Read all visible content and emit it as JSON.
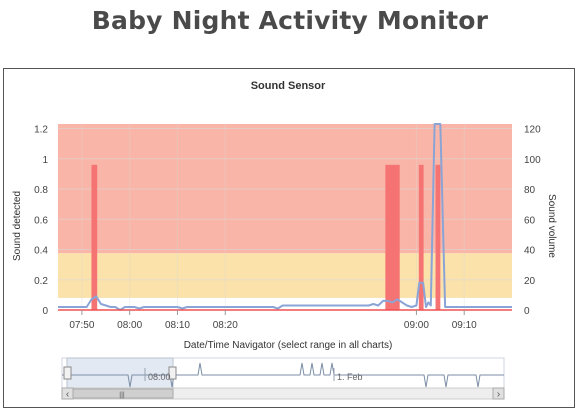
{
  "page": {
    "title": "Baby Night Activity Monitor"
  },
  "chart_data": {
    "type": "bar",
    "title": "Sound Sensor",
    "ylabel": "Sound detected",
    "ylabel_right": "Sound volume",
    "ylim": [
      0,
      1.23
    ],
    "ylim_right": [
      0,
      123
    ],
    "yticks": [
      "0",
      "0.2",
      "0.4",
      "0.6",
      "0.8",
      "1",
      "1.2"
    ],
    "yticks_right": [
      "0",
      "20",
      "40",
      "60",
      "80",
      "100",
      "120"
    ],
    "xlim": [
      "07:45",
      "09:20"
    ],
    "xticks": [
      "07:50",
      "08:00",
      "08:10",
      "08:20",
      "09:00",
      "09:10"
    ],
    "bands": [
      {
        "from": 0.375,
        "to": 1.23,
        "color": "#f9b6a8"
      },
      {
        "from": 0.08,
        "to": 0.375,
        "color": "#fbe2ab"
      }
    ],
    "series": [
      {
        "name": "Sound detected",
        "type": "column",
        "color": "#f57373",
        "points": [
          {
            "from": "07:52.0",
            "to": "07:53.2",
            "value": 0.96
          },
          {
            "from": "08:53.5",
            "to": "08:56.5",
            "value": 0.96
          },
          {
            "from": "09:00.5",
            "to": "09:01.5",
            "value": 0.96
          },
          {
            "from": "09:04.0",
            "to": "09:05.0",
            "value": 0.96
          }
        ]
      },
      {
        "name": "Sound volume",
        "type": "line",
        "axis": "right",
        "color": "#8aa4d6",
        "points": [
          [
            "07:45",
            2
          ],
          [
            "07:51",
            2
          ],
          [
            "07:52",
            7
          ],
          [
            "07:53",
            9
          ],
          [
            "07:54",
            4
          ],
          [
            "07:55",
            3
          ],
          [
            "07:56",
            2
          ],
          [
            "07:57",
            2
          ],
          [
            "07:58",
            0
          ],
          [
            "07:59",
            2
          ],
          [
            "08:01",
            2
          ],
          [
            "08:02",
            1
          ],
          [
            "08:03",
            2
          ],
          [
            "08:10",
            2
          ],
          [
            "08:11",
            1
          ],
          [
            "08:12",
            2
          ],
          [
            "08:30",
            2
          ],
          [
            "08:31",
            1
          ],
          [
            "08:32",
            3
          ],
          [
            "08:50",
            3
          ],
          [
            "08:51",
            4
          ],
          [
            "08:52",
            3
          ],
          [
            "08:53",
            6
          ],
          [
            "08:54",
            6
          ],
          [
            "08:55",
            5
          ],
          [
            "08:56",
            7
          ],
          [
            "08:57",
            5
          ],
          [
            "08:58",
            3
          ],
          [
            "08:59",
            2
          ],
          [
            "09:00",
            3
          ],
          [
            "09:00.6",
            18
          ],
          [
            "09:01.4",
            18
          ],
          [
            "09:02",
            2
          ],
          [
            "09:02.5",
            5
          ],
          [
            "09:03",
            3
          ],
          [
            "09:03.8",
            123
          ],
          [
            "09:05",
            123
          ],
          [
            "09:06",
            2
          ],
          [
            "09:20",
            2
          ]
        ]
      }
    ]
  },
  "navigator": {
    "label": "Date/Time Navigator (select range in all charts)",
    "tick_labels": [
      "08:00",
      "1. Feb"
    ],
    "scroll_left_arrow": "‹",
    "scroll_right_arrow": "›",
    "scroll_grip": "|||"
  }
}
